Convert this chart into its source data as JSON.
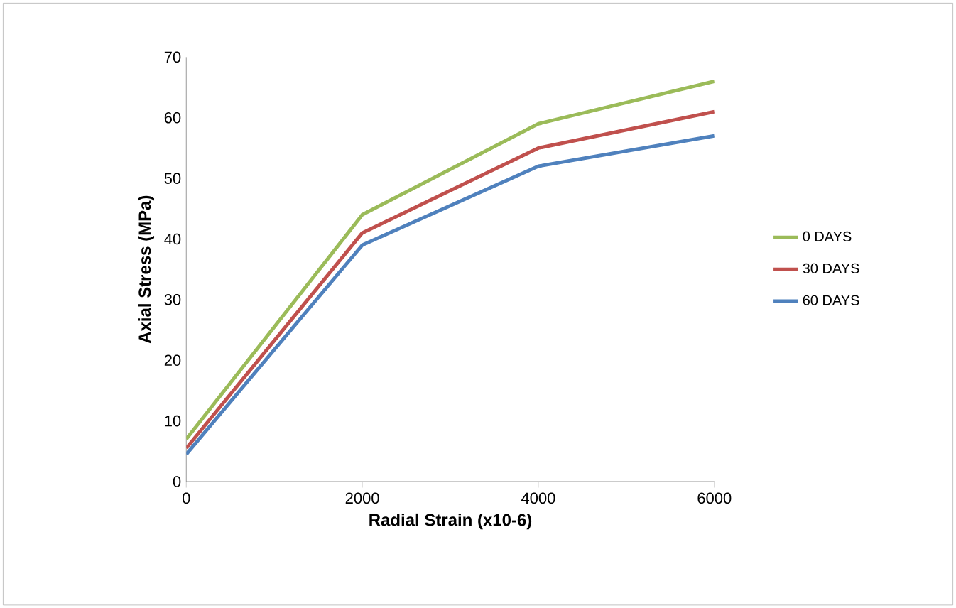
{
  "chart_data": {
    "type": "line",
    "xlabel": "Radial Strain (x10-6)",
    "ylabel": "Axial Stress (MPa)",
    "x": [
      0,
      2000,
      4000,
      6000
    ],
    "series": [
      {
        "name": "0 DAYS",
        "color": "#9bbb59",
        "values": [
          7,
          44,
          59,
          66
        ]
      },
      {
        "name": "30 DAYS",
        "color": "#c0504d",
        "values": [
          5.5,
          41,
          55,
          61
        ]
      },
      {
        "name": "60 DAYS",
        "color": "#4f81bd",
        "values": [
          4.5,
          39,
          52,
          57
        ]
      }
    ],
    "xlim": [
      0,
      6000
    ],
    "ylim": [
      0,
      70
    ],
    "xticks": [
      0,
      2000,
      4000,
      6000
    ],
    "yticks": [
      0,
      10,
      20,
      30,
      40,
      50,
      60,
      70
    ],
    "legend": "right",
    "grid": false,
    "marker": "none",
    "line_style": "solid"
  }
}
